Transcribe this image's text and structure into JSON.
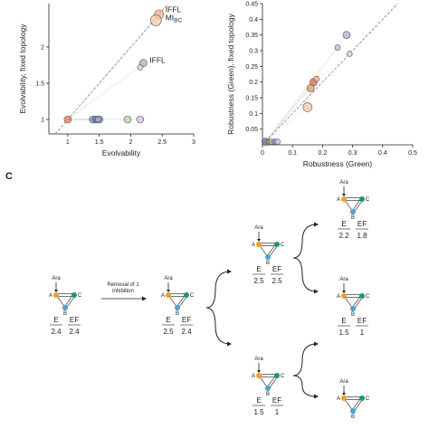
{
  "chart_data": [
    {
      "type": "scatter",
      "xlabel": "Evolvability",
      "ylabel": "Evolvability, fixed topology",
      "xlim": [
        0.7,
        3
      ],
      "ylim": [
        0.8,
        2.6
      ],
      "xticks": [
        "1",
        "1.5",
        "2",
        "2.5",
        "3"
      ],
      "xtick_values": [
        1,
        1.5,
        2,
        2.5,
        3
      ],
      "yticks": [
        "1",
        "1.5",
        "2"
      ],
      "ytick_values": [
        1,
        1.5,
        2
      ],
      "diagonal": true,
      "annotations": [
        {
          "text": "IFFL",
          "x": 2.55,
          "y": 2.48
        },
        {
          "text": "MI",
          "sub": "BC",
          "x": 2.55,
          "y": 2.37
        },
        {
          "text": "IFFL",
          "x": 2.3,
          "y": 1.78
        }
      ],
      "points": [
        {
          "x": 1.0,
          "y": 1.0,
          "r": 4,
          "color": "#e07a4a"
        },
        {
          "x": 1.4,
          "y": 1.0,
          "r": 4,
          "color": "#7e8fd0"
        },
        {
          "x": 1.45,
          "y": 1.0,
          "r": 4,
          "color": "#5a6fb0"
        },
        {
          "x": 1.5,
          "y": 1.0,
          "r": 4,
          "color": "#4d7fb8"
        },
        {
          "x": 1.48,
          "y": 1.0,
          "r": 3,
          "color": "#c9b6de"
        },
        {
          "x": 1.95,
          "y": 1.0,
          "r": 4,
          "color": "#a8d8a0"
        },
        {
          "x": 2.15,
          "y": 1.0,
          "r": 4,
          "color": "#cfc0e6"
        },
        {
          "x": 2.2,
          "y": 1.78,
          "r": 4,
          "color": "#b8a6d8"
        },
        {
          "x": 2.15,
          "y": 1.72,
          "r": 3,
          "color": "#d9cdea"
        },
        {
          "x": 2.45,
          "y": 2.45,
          "r": 5,
          "color": "#f4b48a"
        },
        {
          "x": 2.4,
          "y": 2.37,
          "r": 6,
          "color": "#f6c8a8"
        }
      ]
    },
    {
      "type": "scatter",
      "xlabel": "Robustness (Green)",
      "ylabel": "Robustness (Green), fixed topology",
      "xlim": [
        0,
        0.5
      ],
      "ylim": [
        0,
        0.45
      ],
      "xticks": [
        "0",
        "0.1",
        "0.2",
        "0.3",
        "0.4",
        "0.5"
      ],
      "xtick_values": [
        0,
        0.1,
        0.2,
        0.3,
        0.4,
        0.5
      ],
      "yticks": [
        "0.05",
        "0.1",
        "0.15",
        "0.2",
        "0.25",
        "0.3",
        "0.35",
        "0.4",
        "0.45"
      ],
      "ytick_values": [
        0.05,
        0.1,
        0.15,
        0.2,
        0.25,
        0.3,
        0.35,
        0.4,
        0.45
      ],
      "diagonal": true,
      "points": [
        {
          "x": 0.01,
          "y": 0.01,
          "r": 4,
          "color": "#5a6fb0"
        },
        {
          "x": 0.02,
          "y": 0.01,
          "r": 3,
          "color": "#e07a4a"
        },
        {
          "x": 0.03,
          "y": 0.01,
          "r": 3,
          "color": "#a8d8a0"
        },
        {
          "x": 0.04,
          "y": 0.01,
          "r": 3,
          "color": "#7e8fd0"
        },
        {
          "x": 0.05,
          "y": 0.01,
          "r": 3,
          "color": "#cfc0e6"
        },
        {
          "x": 0.15,
          "y": 0.12,
          "r": 5,
          "color": "#f6c8a8"
        },
        {
          "x": 0.16,
          "y": 0.18,
          "r": 4,
          "color": "#e8955e"
        },
        {
          "x": 0.17,
          "y": 0.2,
          "r": 4,
          "color": "#d07040"
        },
        {
          "x": 0.18,
          "y": 0.21,
          "r": 3,
          "color": "#f4b48a"
        },
        {
          "x": 0.25,
          "y": 0.31,
          "r": 3,
          "color": "#c9b6de"
        },
        {
          "x": 0.28,
          "y": 0.35,
          "r": 4,
          "color": "#b8a6d8"
        },
        {
          "x": 0.29,
          "y": 0.29,
          "r": 3,
          "color": "#d9cdea"
        }
      ]
    }
  ],
  "panel_c": {
    "label": "C",
    "node_labels": {
      "ara": "Ara",
      "a": "A",
      "b": "B",
      "c": "C"
    },
    "arrow_text": "Removal of 1 inhibition",
    "col_e": "E",
    "col_ef": "EF",
    "motifs": [
      {
        "id": "m0",
        "e": "2.4",
        "ef": "2.4"
      },
      {
        "id": "m1",
        "e": "2.5",
        "ef": "2.4"
      },
      {
        "id": "m2",
        "e": "2.5",
        "ef": "2.5"
      },
      {
        "id": "m3",
        "e": "1.5",
        "ef": "1"
      },
      {
        "id": "m4",
        "e": "2.2",
        "ef": "1.8"
      },
      {
        "id": "m5",
        "e": "1.5",
        "ef": "1"
      },
      {
        "id": "m6",
        "e": "",
        "ef": ""
      }
    ]
  },
  "colors": {
    "node_a": "#f0a020",
    "node_b": "#4ba0d8",
    "node_c": "#1e9a5a"
  }
}
